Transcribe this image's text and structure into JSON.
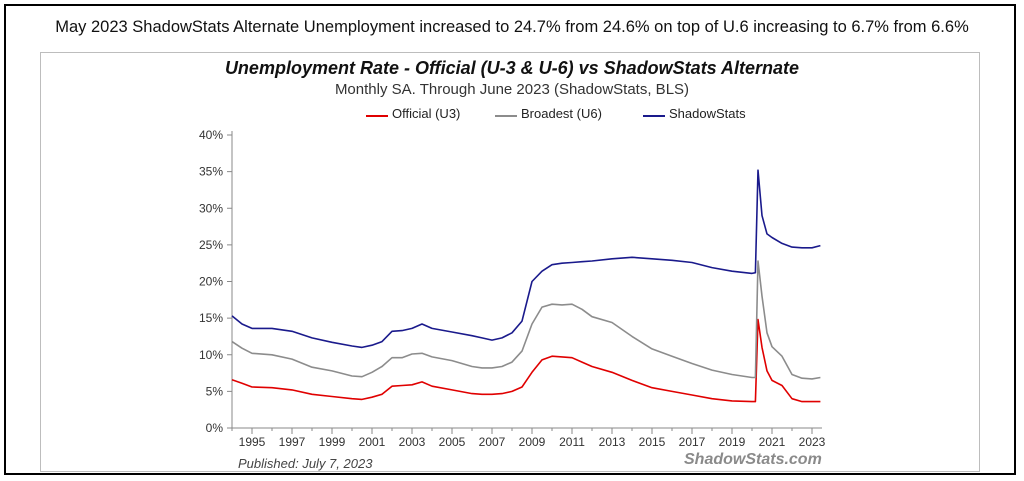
{
  "headline": "May 2023 ShadowStats Alternate Unemployment increased to 24.7% from 24.6% on top of U.6 increasing to 6.7% from 6.6%",
  "published": "Published: July 7, 2023",
  "watermark": "ShadowStats.com",
  "chart_data": {
    "type": "line",
    "title": "Unemployment Rate - Official (U-3 & U-6) vs ShadowStats Alternate",
    "subtitle": "Monthly SA. Through June 2023  (ShadowStats, BLS)",
    "xlabel": "",
    "ylabel": "",
    "xlim": [
      1994.0,
      2023.5
    ],
    "ylim": [
      0,
      40
    ],
    "yticks": [
      0,
      5,
      10,
      15,
      20,
      25,
      30,
      35,
      40
    ],
    "ytick_labels": [
      "0%",
      "5%",
      "10%",
      "15%",
      "20%",
      "25%",
      "30%",
      "35%",
      "40%"
    ],
    "xticks": [
      1995,
      1997,
      1999,
      2001,
      2003,
      2005,
      2007,
      2009,
      2011,
      2013,
      2015,
      2017,
      2019,
      2021,
      2023
    ],
    "xtick_labels": [
      "1995",
      "1997",
      "1999",
      "2001",
      "2003",
      "2005",
      "2007",
      "2009",
      "2011",
      "2013",
      "2015",
      "2017",
      "2019",
      "2021",
      "2023"
    ],
    "grid": false,
    "legend_position": "top",
    "series": [
      {
        "name": "Official (U3)",
        "color": "#e00000",
        "x": [
          1994.0,
          1994.5,
          1995.0,
          1996.0,
          1997.0,
          1998.0,
          1999.0,
          2000.0,
          2000.5,
          2001.0,
          2001.5,
          2002.0,
          2002.5,
          2003.0,
          2003.5,
          2004.0,
          2005.0,
          2006.0,
          2006.5,
          2007.0,
          2007.5,
          2008.0,
          2008.5,
          2009.0,
          2009.5,
          2010.0,
          2010.5,
          2011.0,
          2011.5,
          2012.0,
          2013.0,
          2014.0,
          2015.0,
          2016.0,
          2017.0,
          2018.0,
          2019.0,
          2020.0,
          2020.17,
          2020.3,
          2020.5,
          2020.75,
          2021.0,
          2021.5,
          2022.0,
          2022.5,
          2023.0,
          2023.42
        ],
        "values": [
          6.6,
          6.1,
          5.6,
          5.5,
          5.2,
          4.6,
          4.3,
          4.0,
          3.9,
          4.2,
          4.6,
          5.7,
          5.8,
          5.9,
          6.3,
          5.7,
          5.2,
          4.7,
          4.6,
          4.6,
          4.7,
          5.0,
          5.6,
          7.6,
          9.3,
          9.8,
          9.7,
          9.6,
          9.0,
          8.4,
          7.6,
          6.5,
          5.5,
          5.0,
          4.5,
          4.0,
          3.7,
          3.6,
          3.6,
          14.8,
          11.0,
          7.8,
          6.5,
          5.8,
          4.0,
          3.6,
          3.6,
          3.6
        ]
      },
      {
        "name": "Broadest (U6)",
        "color": "#8c8c8c",
        "x": [
          1994.0,
          1994.5,
          1995.0,
          1996.0,
          1997.0,
          1998.0,
          1999.0,
          2000.0,
          2000.5,
          2001.0,
          2001.5,
          2002.0,
          2002.5,
          2003.0,
          2003.5,
          2004.0,
          2005.0,
          2006.0,
          2006.5,
          2007.0,
          2007.5,
          2008.0,
          2008.5,
          2009.0,
          2009.5,
          2010.0,
          2010.5,
          2011.0,
          2011.5,
          2012.0,
          2013.0,
          2014.0,
          2015.0,
          2016.0,
          2017.0,
          2018.0,
          2019.0,
          2020.0,
          2020.17,
          2020.3,
          2020.5,
          2020.75,
          2021.0,
          2021.5,
          2022.0,
          2022.5,
          2023.0,
          2023.42
        ],
        "values": [
          11.8,
          10.9,
          10.2,
          10.0,
          9.4,
          8.3,
          7.8,
          7.1,
          7.0,
          7.6,
          8.4,
          9.6,
          9.6,
          10.1,
          10.2,
          9.7,
          9.2,
          8.4,
          8.2,
          8.2,
          8.4,
          9.0,
          10.5,
          14.2,
          16.5,
          16.9,
          16.8,
          16.9,
          16.2,
          15.2,
          14.4,
          12.5,
          10.8,
          9.8,
          8.8,
          7.9,
          7.3,
          6.9,
          6.9,
          22.8,
          18.0,
          13.0,
          11.1,
          9.8,
          7.3,
          6.8,
          6.7,
          6.9
        ]
      },
      {
        "name": "ShadowStats",
        "color": "#1a1a8c",
        "x": [
          1994.0,
          1994.5,
          1995.0,
          1996.0,
          1997.0,
          1998.0,
          1999.0,
          2000.0,
          2000.5,
          2001.0,
          2001.5,
          2002.0,
          2002.5,
          2003.0,
          2003.5,
          2004.0,
          2005.0,
          2006.0,
          2006.5,
          2007.0,
          2007.5,
          2008.0,
          2008.5,
          2009.0,
          2009.5,
          2010.0,
          2010.5,
          2011.0,
          2011.5,
          2012.0,
          2013.0,
          2014.0,
          2015.0,
          2016.0,
          2017.0,
          2018.0,
          2019.0,
          2020.0,
          2020.17,
          2020.3,
          2020.5,
          2020.75,
          2021.0,
          2021.5,
          2022.0,
          2022.5,
          2023.0,
          2023.42
        ],
        "values": [
          15.3,
          14.2,
          13.6,
          13.6,
          13.2,
          12.3,
          11.7,
          11.2,
          11.0,
          11.3,
          11.8,
          13.2,
          13.3,
          13.6,
          14.2,
          13.6,
          13.1,
          12.6,
          12.3,
          12.0,
          12.3,
          13.0,
          14.6,
          20.0,
          21.4,
          22.3,
          22.5,
          22.6,
          22.7,
          22.8,
          23.1,
          23.3,
          23.1,
          22.9,
          22.6,
          21.9,
          21.4,
          21.1,
          21.2,
          35.2,
          29.0,
          26.5,
          26.0,
          25.2,
          24.7,
          24.6,
          24.6,
          24.9
        ]
      }
    ]
  }
}
